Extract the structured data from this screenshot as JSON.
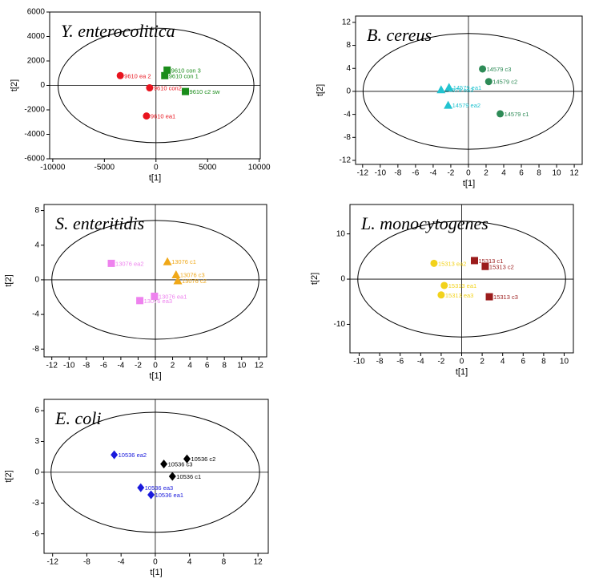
{
  "chart_data": [
    {
      "type": "scatter",
      "title": "Y. enterocolitica",
      "x_label": "t[1]",
      "y_label": "t[2]",
      "xlim": [
        -10300,
        10100
      ],
      "ylim": [
        -6000,
        6000
      ],
      "xticks": [
        -10000,
        -5000,
        0,
        5000,
        10000
      ],
      "yticks": [
        -6000,
        -4000,
        -2000,
        0,
        2000,
        4000,
        6000
      ],
      "series": [
        {
          "color": "#e8141e",
          "marker": "circle",
          "x": [
            -3460,
            -615,
            -920
          ],
          "values": [
            800,
            -200,
            -2500
          ],
          "labels": [
            "9610 ea 2",
            "9610 con2",
            "9610 ea1"
          ]
        },
        {
          "color": "#1a8c1a",
          "marker": "square",
          "x": [
            1080,
            850,
            2850
          ],
          "values": [
            1250,
            800,
            -500
          ],
          "labels": [
            "9610 con 3",
            "9610 con 1",
            "9610 c2 sw"
          ]
        }
      ]
    },
    {
      "type": "scatter",
      "title": "B. cereus",
      "x_label": "t[1]",
      "y_label": "t[2]",
      "xlim": [
        -12.8,
        12.9
      ],
      "ylim": [
        -12.7,
        13.1
      ],
      "xticks": [
        -12,
        -10,
        -8,
        -6,
        -4,
        -2,
        0,
        2,
        4,
        6,
        8,
        10,
        12
      ],
      "yticks": [
        -12,
        -8,
        -4,
        0,
        4,
        8,
        12
      ],
      "series": [
        {
          "color": "#2e8b57",
          "marker": "circle",
          "x": [
            1.6,
            2.3,
            3.6
          ],
          "values": [
            3.9,
            1.7,
            -3.9
          ],
          "labels": [
            "14579 c3",
            "14579 c2",
            "14579 c1"
          ]
        },
        {
          "color": "#22c3d0",
          "marker": "triangle",
          "x": [
            -3.1,
            -2.2,
            -2.3
          ],
          "values": [
            0.3,
            0.7,
            -2.4
          ],
          "labels": [
            "14579 ea3",
            "14579 ea1",
            "14579 ea2"
          ]
        }
      ]
    },
    {
      "type": "scatter",
      "title": "S. enteritidis",
      "x_label": "t[1]",
      "y_label": "t[2]",
      "xlim": [
        -12.9,
        12.9
      ],
      "ylim": [
        -8.9,
        8.7
      ],
      "xticks": [
        -12,
        -10,
        -8,
        -6,
        -4,
        -2,
        0,
        2,
        4,
        6,
        8,
        10,
        12
      ],
      "yticks": [
        -8,
        -4,
        0,
        4,
        8
      ],
      "series": [
        {
          "color": "#f0a818",
          "marker": "triangle",
          "x": [
            1.4,
            2.4,
            2.6
          ],
          "values": [
            2.1,
            0.6,
            -0.1
          ],
          "labels": [
            "13076 c1",
            "13076 c3",
            "13076 c2"
          ]
        },
        {
          "color": "#ee82ee",
          "marker": "square",
          "x": [
            -5.1,
            -0.1,
            -1.8
          ],
          "values": [
            1.9,
            -1.9,
            -2.4
          ],
          "labels": [
            "13076 ea2",
            "13076 ea1",
            "13076 ea3"
          ]
        }
      ]
    },
    {
      "type": "scatter",
      "title": "L. monocytogenes",
      "x_label": "t[1]",
      "y_label": "t[2]",
      "xlim": [
        -10.9,
        10.9
      ],
      "ylim": [
        -16.3,
        16.5
      ],
      "xticks": [
        -10,
        -8,
        -6,
        -4,
        -2,
        0,
        2,
        4,
        6,
        8,
        10
      ],
      "yticks": [
        -10,
        0,
        10
      ],
      "series": [
        {
          "color": "#9b1c1c",
          "marker": "square",
          "x": [
            1.25,
            2.3,
            2.7
          ],
          "values": [
            4.1,
            2.8,
            -3.9
          ],
          "labels": [
            "15313 c1",
            "15313 c2",
            "15313 c3"
          ]
        },
        {
          "color": "#f2d21a",
          "marker": "circle",
          "x": [
            -2.7,
            -1.7,
            -2.0
          ],
          "values": [
            3.5,
            -1.4,
            -3.5
          ],
          "labels": [
            "15313 ea2",
            "15313 ea1",
            "15313 ea3"
          ]
        }
      ]
    },
    {
      "type": "scatter",
      "title": "E. coli",
      "x_label": "t[1]",
      "y_label": "t[2]",
      "xlim": [
        -13.0,
        13.2
      ],
      "ylim": [
        -7.9,
        7.1
      ],
      "xticks": [
        -12,
        -8,
        -4,
        0,
        4,
        8,
        12
      ],
      "yticks": [
        -6,
        -3,
        0,
        3,
        6
      ],
      "series": [
        {
          "color": "#000000",
          "marker": "diamond",
          "x": [
            1.0,
            3.7,
            2.0
          ],
          "values": [
            0.8,
            1.3,
            -0.4
          ],
          "labels": [
            "10536 c3",
            "10536 c2",
            "10536 c1"
          ]
        },
        {
          "color": "#1a1adc",
          "marker": "diamond",
          "x": [
            -4.8,
            -1.7,
            -0.5
          ],
          "values": [
            1.7,
            -1.5,
            -2.2
          ],
          "labels": [
            "10536 ea2",
            "10536 ea3",
            "10536 ea1"
          ]
        }
      ]
    }
  ]
}
